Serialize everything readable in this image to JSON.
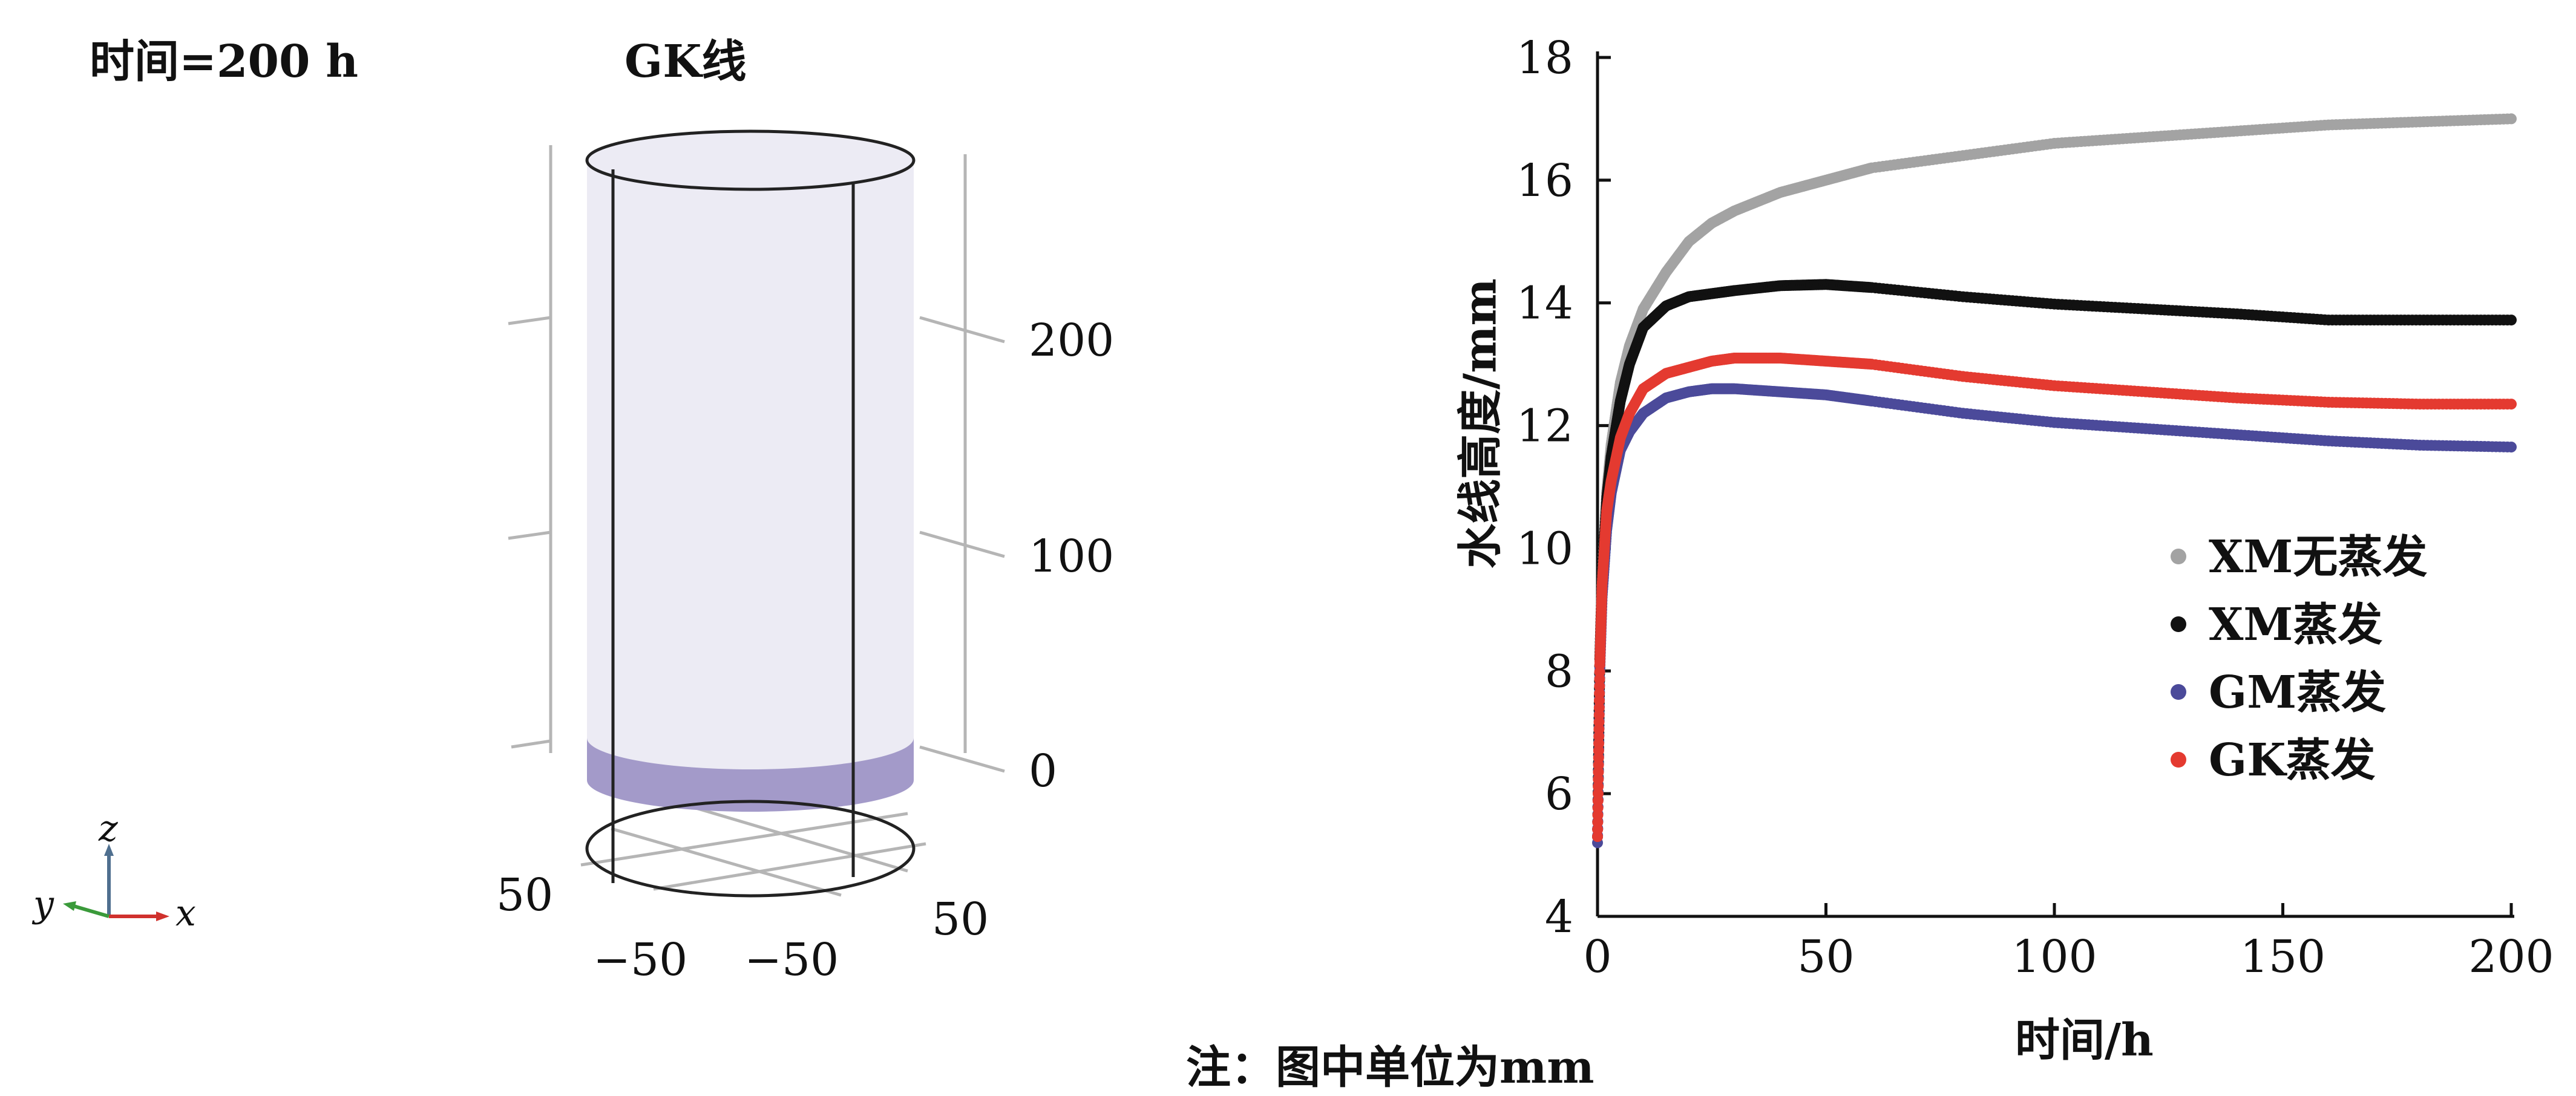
{
  "left_panel": {
    "time_label": "时间=200 h",
    "title": "GK线",
    "z_ticks": [
      "200",
      "100",
      "0"
    ],
    "x_ticks": [
      "−50",
      "50"
    ],
    "y_ticks": [
      "50",
      "−50"
    ],
    "axis_labels": {
      "z": "z",
      "y": "y",
      "x": "x"
    },
    "colors": {
      "cylinder": "#ecebf4",
      "water": "#a39ac9",
      "grid": "#b5b5b5",
      "edge": "#222222"
    },
    "water_level_mm": 12.3
  },
  "note": "注：图中单位为mm",
  "chart_data": {
    "type": "scatter",
    "xlabel": "时间/h",
    "ylabel": "水线高度/mm",
    "xlim": [
      0,
      200
    ],
    "ylim": [
      4,
      18
    ],
    "xticks": [
      0,
      50,
      100,
      150,
      200
    ],
    "yticks": [
      4,
      6,
      8,
      10,
      12,
      14,
      16,
      18
    ],
    "legend_position": "lower-right",
    "series": [
      {
        "name": "XM无蒸发",
        "color": "#a3a3a3",
        "x": [
          0,
          0.5,
          1,
          2,
          3,
          5,
          7,
          10,
          15,
          20,
          25,
          30,
          40,
          50,
          60,
          80,
          100,
          120,
          140,
          160,
          180,
          200
        ],
        "y": [
          5.3,
          8.2,
          9.5,
          10.9,
          11.7,
          12.7,
          13.3,
          13.9,
          14.5,
          15.0,
          15.3,
          15.5,
          15.8,
          16.0,
          16.2,
          16.4,
          16.6,
          16.7,
          16.8,
          16.9,
          16.95,
          17.0
        ]
      },
      {
        "name": "XM蒸发",
        "color": "#111111",
        "x": [
          0,
          0.5,
          1,
          2,
          3,
          5,
          7,
          10,
          15,
          20,
          25,
          30,
          40,
          50,
          60,
          80,
          100,
          120,
          140,
          160,
          180,
          200
        ],
        "y": [
          5.3,
          8.2,
          9.5,
          10.8,
          11.5,
          12.4,
          13.0,
          13.6,
          13.95,
          14.1,
          14.15,
          14.2,
          14.28,
          14.3,
          14.25,
          14.1,
          13.98,
          13.9,
          13.82,
          13.72,
          13.72,
          13.72
        ]
      },
      {
        "name": "GM蒸发",
        "color": "#4b4a9a",
        "x": [
          0,
          0.5,
          1,
          2,
          3,
          5,
          7,
          10,
          15,
          20,
          25,
          30,
          40,
          50,
          60,
          80,
          100,
          120,
          140,
          160,
          180,
          200
        ],
        "y": [
          5.2,
          8.0,
          9.2,
          10.3,
          10.9,
          11.6,
          11.9,
          12.2,
          12.45,
          12.55,
          12.6,
          12.6,
          12.55,
          12.5,
          12.4,
          12.2,
          12.05,
          11.95,
          11.85,
          11.75,
          11.68,
          11.65
        ]
      },
      {
        "name": "GK蒸发",
        "color": "#e43a30",
        "x": [
          0,
          0.5,
          1,
          2,
          3,
          5,
          7,
          10,
          15,
          20,
          25,
          30,
          40,
          50,
          60,
          80,
          100,
          120,
          140,
          160,
          180,
          200
        ],
        "y": [
          5.3,
          8.1,
          9.4,
          10.6,
          11.1,
          11.8,
          12.2,
          12.6,
          12.85,
          12.95,
          13.05,
          13.1,
          13.1,
          13.05,
          13.0,
          12.8,
          12.65,
          12.55,
          12.45,
          12.38,
          12.35,
          12.35
        ]
      }
    ]
  }
}
